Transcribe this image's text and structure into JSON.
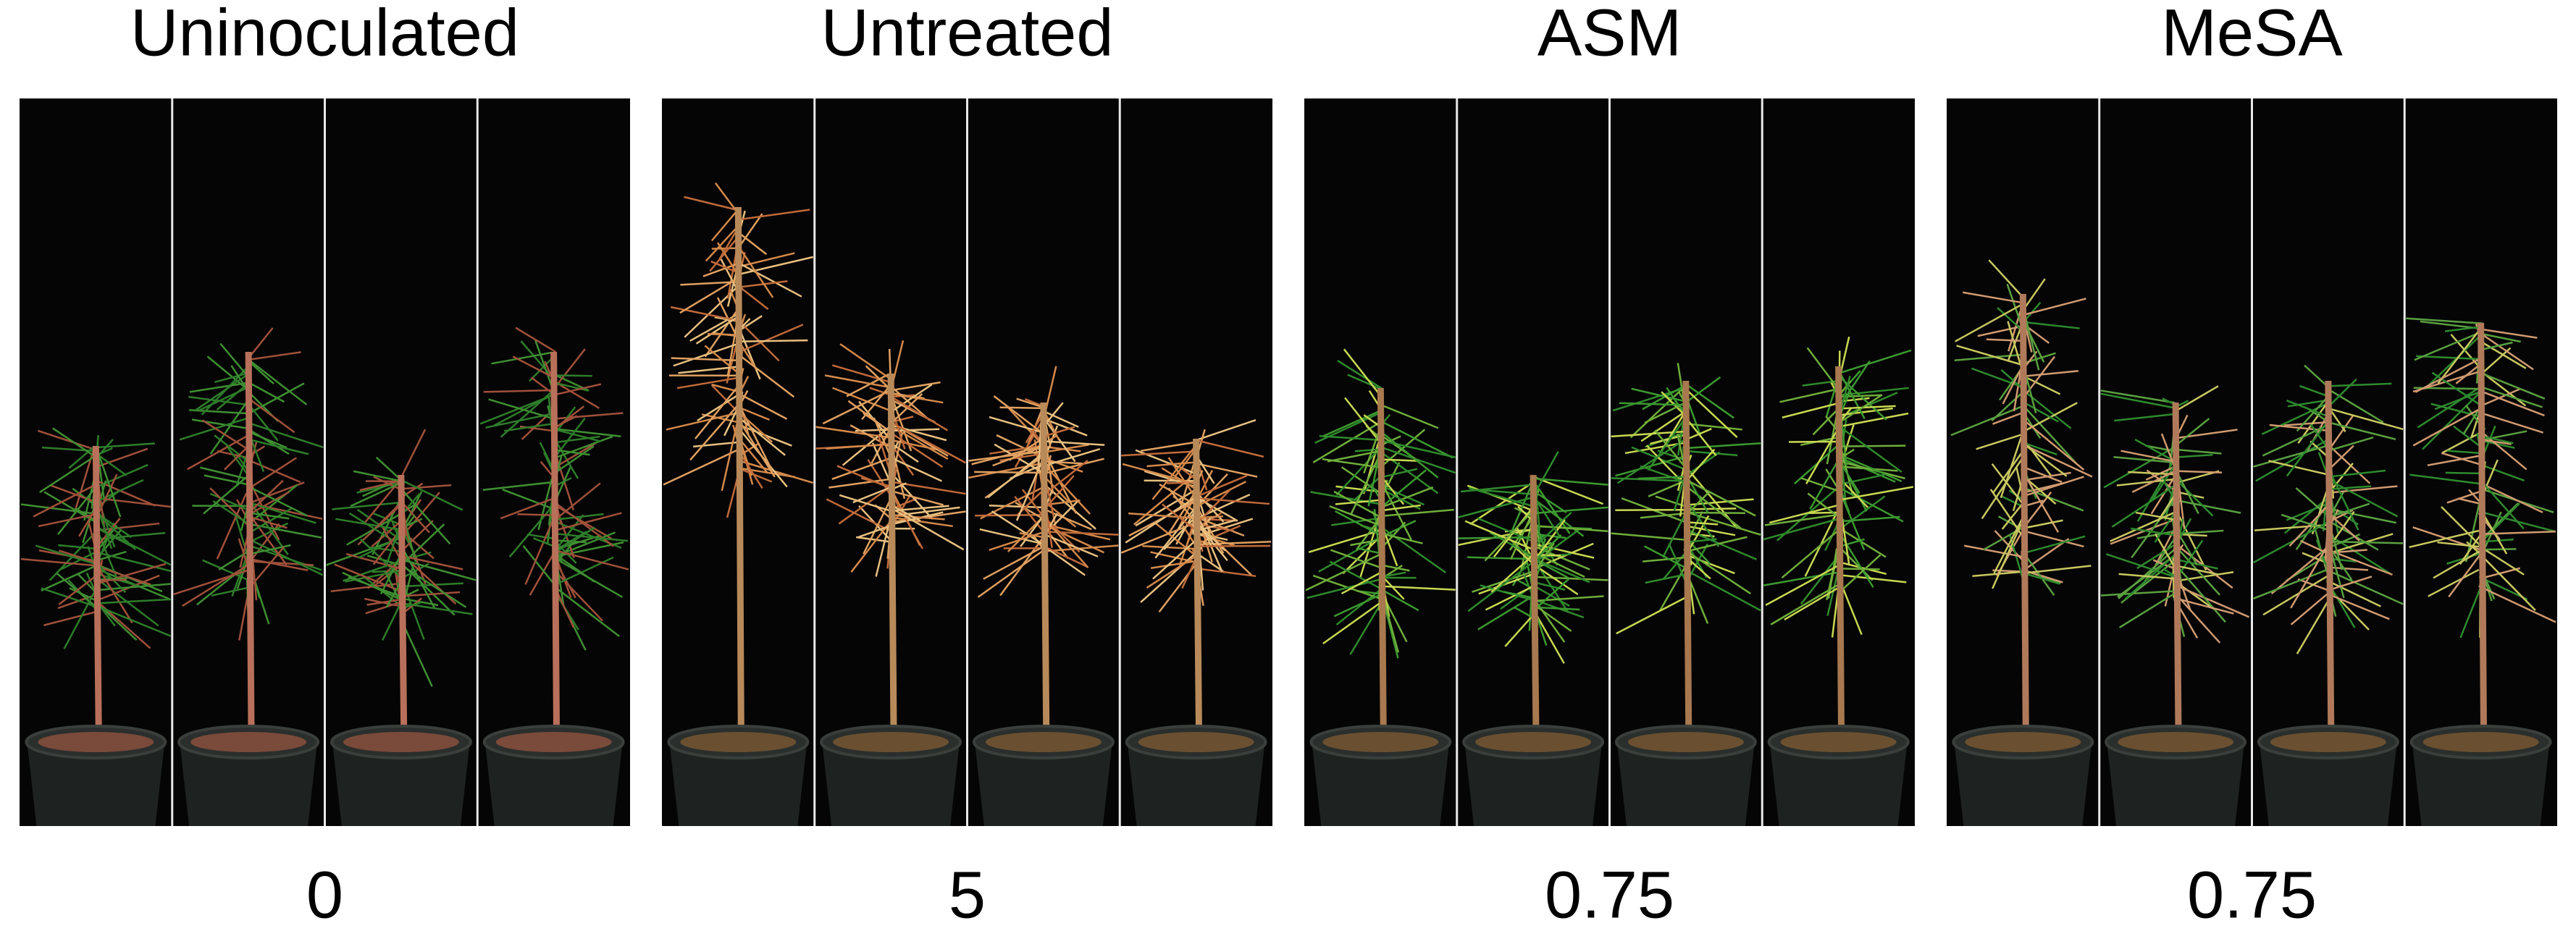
{
  "panels": [
    {
      "title": "Uninoculated",
      "score": 0
    },
    {
      "title": "Untreated",
      "score": 5
    },
    {
      "title": "ASM",
      "score": 0.75
    },
    {
      "title": "MeSA",
      "score": 0.75
    }
  ]
}
